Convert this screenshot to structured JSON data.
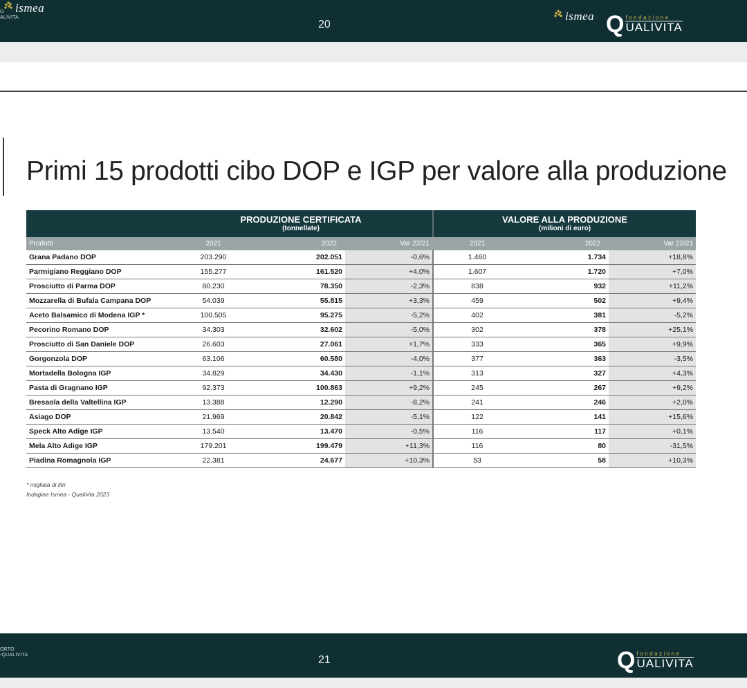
{
  "header": {
    "report_label": "O\nALIVITA",
    "page_number": "20"
  },
  "footer": {
    "report_label": "ORTO\n-QUALIVITA",
    "page_number": "21"
  },
  "logos": {
    "ismea": "ismea",
    "qualivita_small": "fondazione",
    "qualivita_big": "UALIVITA",
    "qualivita_q": "Q"
  },
  "title": "Primi 15 prodotti cibo DOP e IGP per valore alla produzione",
  "table": {
    "group1_title": "PRODUZIONE CERTIFICATA",
    "group1_sub": "(tonnellate)",
    "group2_title": "VALORE ALLA PRODUZIONE",
    "group2_sub": "(milioni di euro)",
    "col_product": "Prodotti",
    "col_2021": "2021",
    "col_2022": "2022",
    "col_var": "Var 22/21",
    "rows": [
      {
        "product": "Grana Padano DOP",
        "p2021": "203.290",
        "p2022": "202.051",
        "pvar": "-0,6%",
        "v2021": "1.460",
        "v2022": "1.734",
        "vvar": "+18,8%"
      },
      {
        "product": "Parmigiano Reggiano DOP",
        "p2021": "155.277",
        "p2022": "161.520",
        "pvar": "+4,0%",
        "v2021": "1.607",
        "v2022": "1.720",
        "vvar": "+7,0%"
      },
      {
        "product": "Prosciutto di Parma DOP",
        "p2021": "80.230",
        "p2022": "78.350",
        "pvar": "-2,3%",
        "v2021": "838",
        "v2022": "932",
        "vvar": "+11,2%"
      },
      {
        "product": "Mozzarella di Bufala Campana DOP",
        "p2021": "54.039",
        "p2022": "55.815",
        "pvar": "+3,3%",
        "v2021": "459",
        "v2022": "502",
        "vvar": "+9,4%"
      },
      {
        "product": "Aceto Balsamico di Modena IGP *",
        "p2021": "100.505",
        "p2022": "95.275",
        "pvar": "-5,2%",
        "v2021": "402",
        "v2022": "381",
        "vvar": "-5,2%"
      },
      {
        "product": "Pecorino Romano DOP",
        "p2021": "34.303",
        "p2022": "32.602",
        "pvar": "-5,0%",
        "v2021": "302",
        "v2022": "378",
        "vvar": "+25,1%"
      },
      {
        "product": "Prosciutto di San Daniele DOP",
        "p2021": "26.603",
        "p2022": "27.061",
        "pvar": "+1,7%",
        "v2021": "333",
        "v2022": "365",
        "vvar": "+9,9%"
      },
      {
        "product": "Gorgonzola DOP",
        "p2021": "63.106",
        "p2022": "60.580",
        "pvar": "-4,0%",
        "v2021": "377",
        "v2022": "363",
        "vvar": "-3,5%"
      },
      {
        "product": "Mortadella Bologna IGP",
        "p2021": "34.829",
        "p2022": "34.430",
        "pvar": "-1,1%",
        "v2021": "313",
        "v2022": "327",
        "vvar": "+4,3%"
      },
      {
        "product": "Pasta di Gragnano IGP",
        "p2021": "92.373",
        "p2022": "100.863",
        "pvar": "+9,2%",
        "v2021": "245",
        "v2022": "267",
        "vvar": "+9,2%"
      },
      {
        "product": "Bresaola della Valtellina IGP",
        "p2021": "13.388",
        "p2022": "12.290",
        "pvar": "-8,2%",
        "v2021": "241",
        "v2022": "246",
        "vvar": "+2,0%"
      },
      {
        "product": "Asiago DOP",
        "p2021": "21.969",
        "p2022": "20.842",
        "pvar": "-5,1%",
        "v2021": "122",
        "v2022": "141",
        "vvar": "+15,6%"
      },
      {
        "product": "Speck Alto Adige IGP",
        "p2021": "13.540",
        "p2022": "13.470",
        "pvar": "-0,5%",
        "v2021": "116",
        "v2022": "117",
        "vvar": "+0,1%"
      },
      {
        "product": "Mela Alto Adige IGP",
        "p2021": "179.201",
        "p2022": "199.479",
        "pvar": "+11,3%",
        "v2021": "116",
        "v2022": "80",
        "vvar": "-31,5%"
      },
      {
        "product": "Piadina Romagnola IGP",
        "p2021": "22.381",
        "p2022": "24.677",
        "pvar": "+10,3%",
        "v2021": "53",
        "v2022": "58",
        "vvar": "+10,3%"
      }
    ]
  },
  "notes": {
    "footnote": "* migliaia di litri",
    "source": "Indagine Ismea - Qualivita 2023"
  }
}
